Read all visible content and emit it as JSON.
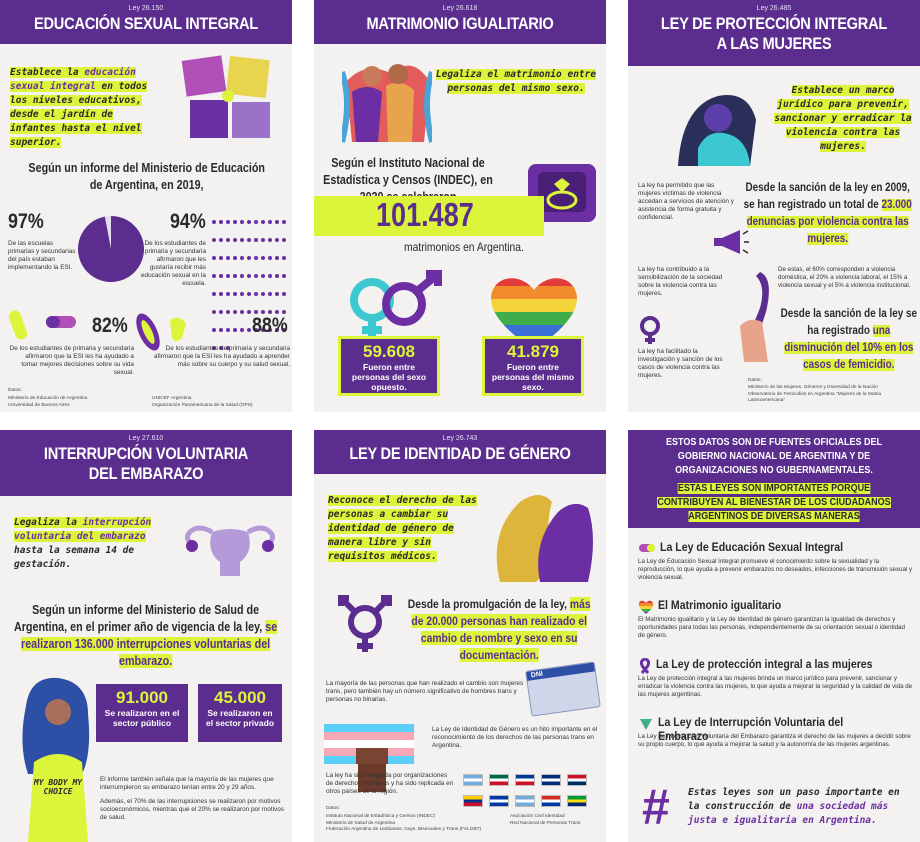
{
  "panel1": {
    "law": "Ley 26.150",
    "title": "EDUCACIÓN SEXUAL INTEGRAL",
    "intro_a": "Establece la ",
    "intro_hl": "educación sexual integral",
    "intro_b": " en todos los niveles educativos, desde el jardín de infantes hasta el nivel superior.",
    "report": "Según un informe del Ministerio de Educación de Argentina, en 2019,",
    "stat1_value": "97%",
    "stat1_fraction": 0.97,
    "stat1_text": "De las escuelas primarias y secundarias del país estaban implementando la ESI.",
    "stat2_value": "94%",
    "stat2_text": "De los estudiantes de primaria y secundaria afirmaron que les gustaría recibir más educación sexual en la escuela.",
    "stat3_value": "82%",
    "stat3_text": "De los estudiantes de primaria y secundaria afirmaron que la ESI les ha ayudado a tomar mejores decisiones sobre su vida sexual.",
    "stat4_value": "88%",
    "stat4_text": "De los estudiantes de primaria y secundaria afirmaron que la ESI les ha ayudado a aprender más sobre su cuerpo y su salud sexual.",
    "sources_label": "Datos:",
    "sources": [
      "Ministerio de Educación de Argentina",
      "Universidad de Buenos Aires",
      "UNICEF Argentina",
      "Organización Panamericana de la Salud (OPS)"
    ]
  },
  "panel2": {
    "law": "Ley 26.618",
    "title": "MATRIMONIO IGUALITARIO",
    "intro": "Legaliza el matrimonio entre personas del mismo sexo.",
    "report": "Según el Instituto Nacional de Estadística y Censos (INDEC), en 2020 se celebraron",
    "big_number": "101.487",
    "big_caption": "matrimonios en Argentina.",
    "box1_value": "59.608",
    "box1_text": "Fueron entre personas del sexo opuesto.",
    "box2_value": "41.879",
    "box2_text": "Fueron entre personas del mismo sexo."
  },
  "panel3": {
    "law": "Ley 26.485",
    "title_l1": "LEY DE PROTECCIÓN INTEGRAL",
    "title_l2": "A LAS MUJERES",
    "intro": "Establece un marco jurídico para prevenir, sancionar y erradicar la violencia contra las mujeres.",
    "side1": "La ley ha permitido que las mujeres víctimas de violencia accedan a servicios de atención y asistencia de forma gratuita y confidencial.",
    "main1_a": "Desde la sanción de la ley en 2009, se han registrado un total de ",
    "main1_hl": "23.000 denuncias por violencia contra las mujeres.",
    "side2": "La ley ha contribuido a la sensibilización de la sociedad sobre la violencia contra las mujeres.",
    "main2": "De estas, el 60% corresponden a violencia doméstica, el 20% a violencia laboral, el 15% a violencia sexual y el 5% a violencia institucional.",
    "main3_a": "Desde la sanción de la ley se ha registrado ",
    "main3_hl": "una disminución del 10% en los casos de femicidio.",
    "side3": "La ley ha facilitado la investigación y sanción de los casos de violencia contra las mujeres.",
    "sources_label": "Datos:",
    "sources": [
      "Ministerio de las Mujeres, Géneros y Diversidad de la Nación",
      "Observatorio de Femicidios en Argentina \"Mujeres de la Matria Latinoamericana\""
    ]
  },
  "panel4": {
    "law": "Ley 27.610",
    "title_l1": "INTERRUPCIÓN VOLUNTARIA",
    "title_l2": "DEL EMBARAZO",
    "intro_a": "Legaliza la ",
    "intro_hl": "interrupción voluntaria del embarazo",
    "intro_b": " hasta la semana 14 de gestación.",
    "report_a": "Según un informe del Ministerio de Salud de Argentina, en el primer año de vigencia de la ley, ",
    "report_hl": "se realizaron 136.000 interrupciones voluntarias del embarazo.",
    "box1_value": "91.000",
    "box1_text": "Se realizaron en el sector público",
    "box2_value": "45.000",
    "box2_text": "Se realizaron en el sector privado",
    "shirt": "MY BODY MY CHOICE",
    "note1": "El informe también señala que la mayoría de las mujeres que interrumpieron su embarazo tenían entre 20 y 29 años.",
    "note2": "Además, el 70% de las interrupciones se realizaron por motivos socioeconómicos, mientras que el 20% se realizaron por motivos de salud."
  },
  "panel5": {
    "law": "Ley 26.743",
    "title": "LEY DE IDENTIDAD DE GÉNERO",
    "intro": "Reconoce el derecho de las personas a cambiar su identidad de género de manera libre y sin requisitos médicos.",
    "main_a": "Desde la promulgación de la ley, ",
    "main_hl": "más de 20.000 personas han realizado el cambio de nombre y sexo en su documentación.",
    "note1": "La mayoría de las personas que han realizado el cambio son mujeres trans, pero también hay un número significativo de hombres trans y personas no binarias.",
    "dni": "DNI",
    "note2": "La Ley de Identidad de Género es un hito importante en el reconocimiento de los derechos de las personas trans en Argentina.",
    "note3": "La ley ha sido elogiada por organizaciones de derechos humanos y ha sido replicada en otros países de la región.",
    "sources_label": "Datos:",
    "sources": [
      "Instituto Nacional de Estadística y Censos (INDEC)",
      "Ministerio de Salud de Argentina",
      "Federación Argentina de Lesbianas, Gays, Bisexuales y Trans (FALGBT)",
      "Asociación Civil Identidad",
      "Red Nacional de Personas Trans"
    ]
  },
  "panel6": {
    "top1": "ESTOS DATOS SON DE FUENTES OFICIALES DEL GOBIERNO NACIONAL DE ARGENTINA Y DE ORGANIZACIONES NO GUBERNAMENTALES.",
    "top2": "ESTAS LEYES SON IMPORTANTES PORQUE CONTRIBUYEN AL BIENESTAR DE LOS CIUDADANOS ARGENTINOS DE DIVERSAS MANERAS",
    "laws": [
      {
        "title": "La Ley de Educación Sexual Integral",
        "text": "La Ley de Educación Sexual Integral promueve el conocimiento sobre la sexualidad y la reproducción, lo que ayuda a prevenir embarazos no deseados, infecciones de transmisión sexual y violencia sexual."
      },
      {
        "title": "El Matrimonio igualitario",
        "text": "El Matrimonio igualitario y la Ley de Identidad de género garantizan la igualdad de derechos y oportunidades para todas las personas, independientemente de su orientación sexual o identidad de género."
      },
      {
        "title": "La Ley de protección integral a las mujeres",
        "text": "La Ley de protección integral a las mujeres brinda un marco jurídico para prevenir, sancionar y erradicar la violencia contra las mujeres, lo que ayuda a mejorar la seguridad y la calidad de vida de las mujeres argentinas."
      },
      {
        "title": "La Ley de Interrupción Voluntaria del Embarazo",
        "text": "La Ley de Interrupción Voluntaria del Embarazo garantiza el derecho de las mujeres a decidir sobre su propio cuerpo, lo que ayuda a mejorar la salud y la autonomía de las mujeres argentinas."
      }
    ],
    "closing_a": "Estas leyes son un paso importante en la construcción de ",
    "closing_hl": "una sociedad más justa e igualitaria en Argentina.",
    "hash": "#"
  },
  "colors": {
    "purple": "#5b2d8e",
    "lime": "#dcf53a",
    "violet": "#6b2fa3"
  }
}
